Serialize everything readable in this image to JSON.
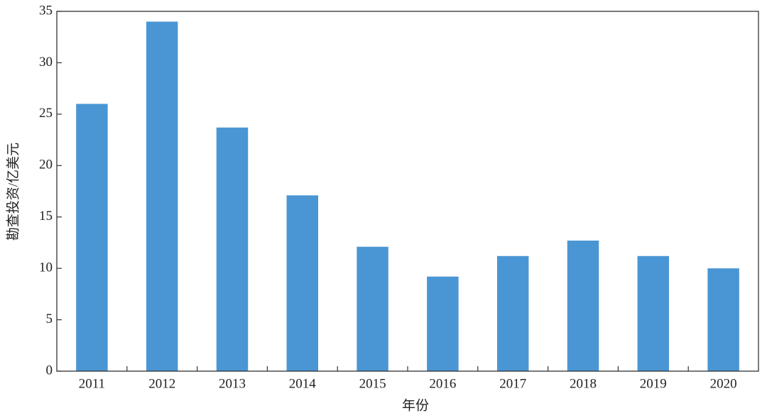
{
  "chart_data": {
    "type": "bar",
    "x_label": "年份",
    "y_label": "勘查投资/亿美元",
    "categories": [
      "2011",
      "2012",
      "2013",
      "2014",
      "2015",
      "2016",
      "2017",
      "2018",
      "2019",
      "2020"
    ],
    "values": [
      26.0,
      34.0,
      23.7,
      17.1,
      12.1,
      9.2,
      11.2,
      12.7,
      11.2,
      10.0
    ],
    "color": "#4a96d4",
    "ylim": [
      0,
      35
    ],
    "yticks": [
      0,
      5,
      10,
      15,
      20,
      25,
      30,
      35
    ],
    "grid": false
  }
}
